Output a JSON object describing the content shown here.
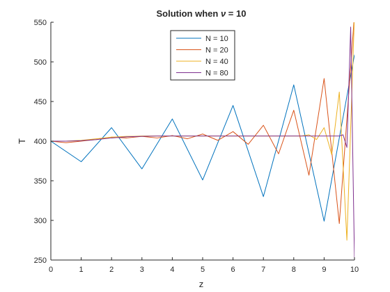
{
  "chart_data": {
    "type": "line",
    "title": "Solution when ν = 10",
    "xlabel": "z",
    "ylabel": "T",
    "xlim": [
      0,
      10
    ],
    "ylim": [
      250,
      550
    ],
    "xticks": [
      0,
      1,
      2,
      3,
      4,
      5,
      6,
      7,
      8,
      9,
      10
    ],
    "yticks": [
      250,
      300,
      350,
      400,
      450,
      500,
      550
    ],
    "grid": false,
    "legend_position": "top-center",
    "series": [
      {
        "name": "N = 10",
        "color": "#0072BD",
        "x": [
          0,
          1,
          2,
          3,
          4,
          5,
          6,
          7,
          8,
          9,
          10
        ],
        "y": [
          400,
          374,
          417,
          365,
          428,
          351,
          445,
          330,
          471,
          299,
          509
        ]
      },
      {
        "name": "N = 20",
        "color": "#D95319",
        "x": [
          0,
          0.5,
          1,
          1.5,
          2,
          2.5,
          3,
          3.5,
          4,
          4.5,
          5,
          5.5,
          6,
          6.5,
          7,
          7.5,
          8,
          8.5,
          9,
          9.5,
          10
        ],
        "y": [
          400,
          398,
          400,
          402,
          405,
          404,
          406,
          404,
          407,
          403,
          409,
          401,
          412,
          396,
          420,
          384,
          439,
          357,
          479,
          296,
          560
        ]
      },
      {
        "name": "N = 40",
        "color": "#EDB120",
        "x": [
          0,
          0.25,
          0.5,
          0.75,
          1,
          1.25,
          1.5,
          1.75,
          2,
          2.25,
          2.5,
          2.75,
          3,
          3.25,
          3.5,
          3.75,
          4,
          4.25,
          4.5,
          4.75,
          5,
          5.25,
          5.5,
          5.75,
          6,
          6.25,
          6.5,
          6.75,
          7,
          7.25,
          7.5,
          7.75,
          8,
          8.25,
          8.5,
          8.75,
          9,
          9.25,
          9.5,
          9.75,
          10
        ],
        "y": [
          400,
          400,
          400,
          400.5,
          401,
          402,
          403,
          404,
          405,
          405.5,
          406,
          406,
          406.5,
          406.5,
          406.5,
          406.5,
          406.5,
          406.5,
          406.5,
          406.5,
          406.5,
          406.5,
          406.5,
          406.5,
          406.5,
          406.5,
          406.5,
          406.5,
          406.5,
          406.5,
          406.5,
          406.5,
          406.5,
          406.5,
          408,
          402,
          417,
          383,
          462,
          275,
          560
        ]
      },
      {
        "name": "N = 80",
        "color": "#7E2F8E",
        "x": [
          0,
          0.5,
          1,
          1.5,
          2,
          2.5,
          3,
          3.5,
          4,
          4.5,
          5,
          5.5,
          6,
          6.5,
          7,
          7.5,
          8,
          8.5,
          9,
          9.25,
          9.5,
          9.625,
          9.75,
          9.875,
          10
        ],
        "y": [
          400,
          400,
          400.5,
          402,
          404,
          405.5,
          406,
          406.5,
          406.5,
          406.5,
          406.5,
          406.5,
          406.5,
          406.5,
          406.5,
          406.5,
          406.5,
          406.5,
          406.5,
          406.5,
          406.5,
          408,
          392,
          544,
          250
        ]
      }
    ]
  }
}
